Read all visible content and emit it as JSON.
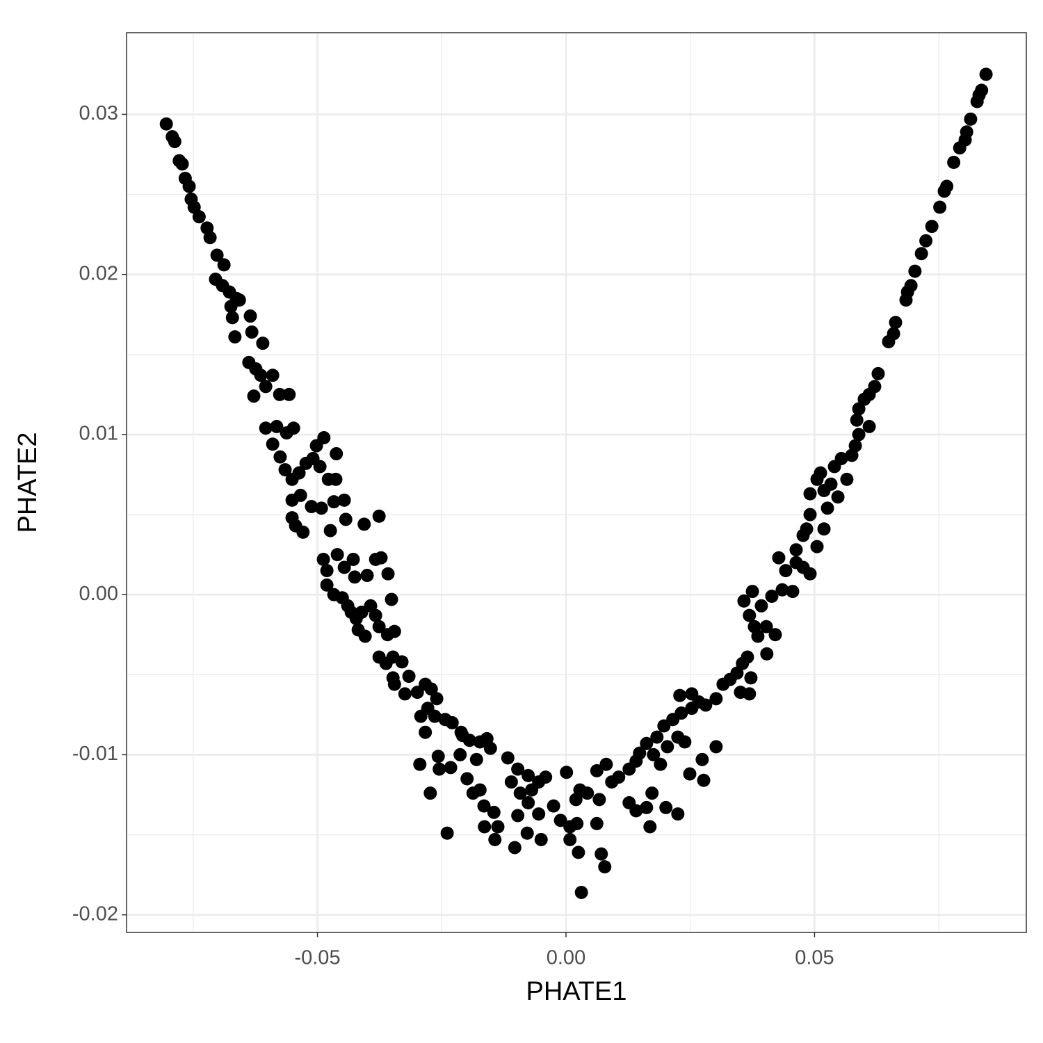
{
  "chart_data": {
    "type": "scatter",
    "xlabel": "PHATE1",
    "ylabel": "PHATE2",
    "color": "#000000",
    "grid": true,
    "xlim": [
      -0.0884,
      0.0926
    ],
    "ylim": [
      -0.0211,
      0.0351
    ],
    "xticks": [
      -0.05,
      {
        "value": 0,
        "label": "0.00"
      },
      0.05
    ],
    "yticks": [
      -0.02,
      -0.01,
      {
        "value": 0,
        "label": "0.00"
      },
      0.01,
      0.02,
      0.03
    ],
    "xminorticks": [
      -0.075,
      -0.025,
      0.025,
      0.075
    ],
    "yminorticks": [
      -0.015,
      -0.005,
      0.005,
      0.015,
      0.025
    ],
    "x": [
      -0.0804,
      -0.0792,
      -0.0787,
      -0.0778,
      -0.0772,
      -0.0766,
      -0.0758,
      -0.0754,
      -0.0748,
      -0.0738,
      -0.0722,
      -0.0716,
      -0.0702,
      -0.0688,
      -0.0705,
      -0.0691,
      -0.0677,
      -0.0663,
      -0.0674,
      -0.0657,
      -0.0671,
      -0.0666,
      -0.0635,
      -0.0632,
      -0.061,
      -0.0638,
      -0.0624,
      -0.0614,
      -0.059,
      -0.0628,
      -0.0604,
      -0.0576,
      -0.0557,
      -0.0604,
      -0.0582,
      -0.0562,
      -0.0548,
      -0.059,
      -0.0575,
      -0.0565,
      -0.0551,
      -0.0537,
      -0.0523,
      -0.0509,
      -0.0502,
      -0.0487,
      -0.0495,
      -0.0478,
      -0.0463,
      -0.0462,
      -0.0551,
      -0.0534,
      -0.0512,
      -0.0492,
      -0.0467,
      -0.0446,
      -0.0443,
      -0.0551,
      -0.0544,
      -0.0529,
      -0.0474,
      -0.0406,
      -0.0376,
      -0.0488,
      -0.0481,
      -0.046,
      -0.0481,
      -0.0446,
      -0.0428,
      -0.0425,
      -0.04,
      -0.0383,
      -0.0372,
      -0.0358,
      -0.0467,
      -0.045,
      -0.0439,
      -0.0432,
      -0.0422,
      -0.0411,
      -0.0393,
      -0.0383,
      -0.0418,
      -0.0404,
      -0.0376,
      -0.0359,
      -0.0345,
      -0.0351,
      -0.0376,
      -0.0362,
      -0.0348,
      -0.033,
      -0.0348,
      -0.0316,
      -0.0345,
      -0.0324,
      -0.0299,
      -0.0283,
      -0.0271,
      -0.026,
      -0.0292,
      -0.0278,
      -0.0264,
      -0.0283,
      -0.0243,
      -0.0229,
      -0.0211,
      -0.0194,
      -0.0208,
      -0.0173,
      -0.0159,
      -0.0152,
      -0.018,
      -0.0257,
      -0.0294,
      -0.0255,
      -0.0232,
      -0.0213,
      -0.0199,
      -0.0187,
      -0.0173,
      -0.0165,
      -0.0164,
      -0.0145,
      -0.0137,
      -0.0143,
      -0.0273,
      -0.0239,
      -0.0117,
      -0.0097,
      -0.0076,
      -0.011,
      -0.0092,
      -0.0069,
      -0.0055,
      -0.0041,
      -0.0097,
      -0.0076,
      -0.0055,
      -0.0078,
      -0.005,
      -0.0103,
      -0.0025,
      -0.0011,
      0.0001,
      0.0008,
      0.002,
      0.0022,
      0.0028,
      0.0043,
      0.0062,
      0.0067,
      0.0062,
      0.0081,
      0.0071,
      0.0078,
      0.0031,
      0.0025,
      0.0008,
      0.0092,
      0.0106,
      0.0127,
      0.0141,
      0.0148,
      0.0162,
      0.0183,
      0.0197,
      0.0215,
      0.0232,
      0.0253,
      0.0267,
      0.0176,
      0.019,
      0.0204,
      0.0225,
      0.0239,
      0.0127,
      0.0141,
      0.0162,
      0.0169,
      0.0173,
      0.0201,
      0.0225,
      0.0249,
      0.0274,
      0.0277,
      0.0302,
      0.0229,
      0.0253,
      0.0281,
      0.0302,
      0.0316,
      0.033,
      0.0344,
      0.0355,
      0.0365,
      0.0351,
      0.0369,
      0.0372,
      0.0358,
      0.0369,
      0.0379,
      0.0386,
      0.0375,
      0.0393,
      0.0403,
      0.0414,
      0.0421,
      0.0404,
      0.0435,
      0.0456,
      0.0428,
      0.0442,
      0.0463,
      0.0477,
      0.0491,
      0.0463,
      0.0477,
      0.0484,
      0.0491,
      0.0505,
      0.0491,
      0.0505,
      0.0512,
      0.0519,
      0.0526,
      0.0519,
      0.0533,
      0.054,
      0.0554,
      0.0565,
      0.0547,
      0.0575,
      0.0582,
      0.0589,
      0.061,
      0.0585,
      0.0589,
      0.06,
      0.061,
      0.0621,
      0.0628,
      0.0649,
      0.0659,
      0.0663,
      0.0684,
      0.0694,
      0.0702,
      0.0687,
      0.0715,
      0.0724,
      0.0736,
      0.0752,
      0.0761,
      0.0766,
      0.078,
      0.0792,
      0.0803,
      0.0806,
      0.0814,
      0.0827,
      0.0831,
      0.0836,
      0.0845
    ],
    "values": [
      0.0294,
      0.0286,
      0.0283,
      0.0271,
      0.0269,
      0.026,
      0.0255,
      0.0247,
      0.0242,
      0.0236,
      0.0229,
      0.0223,
      0.0212,
      0.0206,
      0.0197,
      0.0193,
      0.0189,
      0.0185,
      0.018,
      0.0184,
      0.0173,
      0.0161,
      0.0174,
      0.0164,
      0.0157,
      0.0145,
      0.0141,
      0.0137,
      0.0137,
      0.0124,
      0.013,
      0.0125,
      0.0125,
      0.0104,
      0.0105,
      0.0101,
      0.0104,
      0.0094,
      0.0086,
      0.0078,
      0.0072,
      0.0076,
      0.0082,
      0.0085,
      0.0093,
      0.0098,
      0.008,
      0.0072,
      0.0072,
      0.0088,
      0.0059,
      0.0062,
      0.0055,
      0.0054,
      0.0058,
      0.0059,
      0.0047,
      0.0048,
      0.0043,
      0.0039,
      0.004,
      0.0044,
      0.0049,
      0.0022,
      0.0015,
      0.0025,
      0.0006,
      0.0017,
      0.0022,
      0.0011,
      0.0012,
      0.0022,
      0.0023,
      0.0013,
      0.0,
      -0.0002,
      -0.0007,
      -0.0011,
      -0.0015,
      -0.0011,
      -0.0007,
      -0.0013,
      -0.0022,
      -0.0026,
      -0.002,
      -0.0025,
      -0.0023,
      -0.0003,
      -0.0039,
      -0.0043,
      -0.0039,
      -0.0042,
      -0.0052,
      -0.0051,
      -0.0056,
      -0.0062,
      -0.0061,
      -0.0056,
      -0.0059,
      -0.0065,
      -0.0076,
      -0.0071,
      -0.0076,
      -0.0086,
      -0.0078,
      -0.008,
      -0.0086,
      -0.0091,
      -0.0088,
      -0.0092,
      -0.009,
      -0.0096,
      -0.0103,
      -0.0101,
      -0.0106,
      -0.0109,
      -0.0108,
      -0.01,
      -0.0115,
      -0.0124,
      -0.0122,
      -0.0132,
      -0.0145,
      -0.0136,
      -0.0145,
      -0.0153,
      -0.0124,
      -0.0149,
      -0.0102,
      -0.0109,
      -0.0113,
      -0.0117,
      -0.0124,
      -0.0122,
      -0.0117,
      -0.0114,
      -0.0138,
      -0.013,
      -0.0137,
      -0.0149,
      -0.0153,
      -0.0158,
      -0.0132,
      -0.0141,
      -0.0111,
      -0.0145,
      -0.0128,
      -0.0143,
      -0.0122,
      -0.0124,
      -0.0143,
      -0.0128,
      -0.011,
      -0.0106,
      -0.0162,
      -0.017,
      -0.0186,
      -0.0161,
      -0.0153,
      -0.0117,
      -0.0114,
      -0.0109,
      -0.0104,
      -0.0099,
      -0.0093,
      -0.0089,
      -0.0082,
      -0.0078,
      -0.0074,
      -0.0071,
      -0.0067,
      -0.01,
      -0.0106,
      -0.0095,
      -0.0089,
      -0.0092,
      -0.013,
      -0.0135,
      -0.0133,
      -0.0145,
      -0.0124,
      -0.0133,
      -0.0137,
      -0.0112,
      -0.0103,
      -0.0116,
      -0.0095,
      -0.0063,
      -0.0062,
      -0.0069,
      -0.0065,
      -0.0056,
      -0.0053,
      -0.0049,
      -0.0043,
      -0.0039,
      -0.0061,
      -0.0062,
      -0.0052,
      -0.0004,
      -0.0013,
      -0.002,
      -0.0026,
      0.0002,
      -0.0007,
      -0.002,
      -0.0001,
      -0.0025,
      -0.0037,
      0.0003,
      0.0002,
      0.0023,
      0.0015,
      0.002,
      0.0017,
      0.0013,
      0.0028,
      0.0037,
      0.0041,
      0.005,
      0.003,
      0.0063,
      0.0072,
      0.0076,
      0.0065,
      0.0054,
      0.0041,
      0.0069,
      0.008,
      0.0085,
      0.0072,
      0.0061,
      0.0087,
      0.0093,
      0.01,
      0.0105,
      0.0109,
      0.0116,
      0.0122,
      0.0125,
      0.013,
      0.0138,
      0.0158,
      0.0163,
      0.017,
      0.0184,
      0.0193,
      0.0202,
      0.0189,
      0.0213,
      0.0221,
      0.023,
      0.0242,
      0.0252,
      0.0255,
      0.027,
      0.0279,
      0.0284,
      0.0289,
      0.0297,
      0.0308,
      0.0312,
      0.0315,
      0.0325
    ]
  }
}
